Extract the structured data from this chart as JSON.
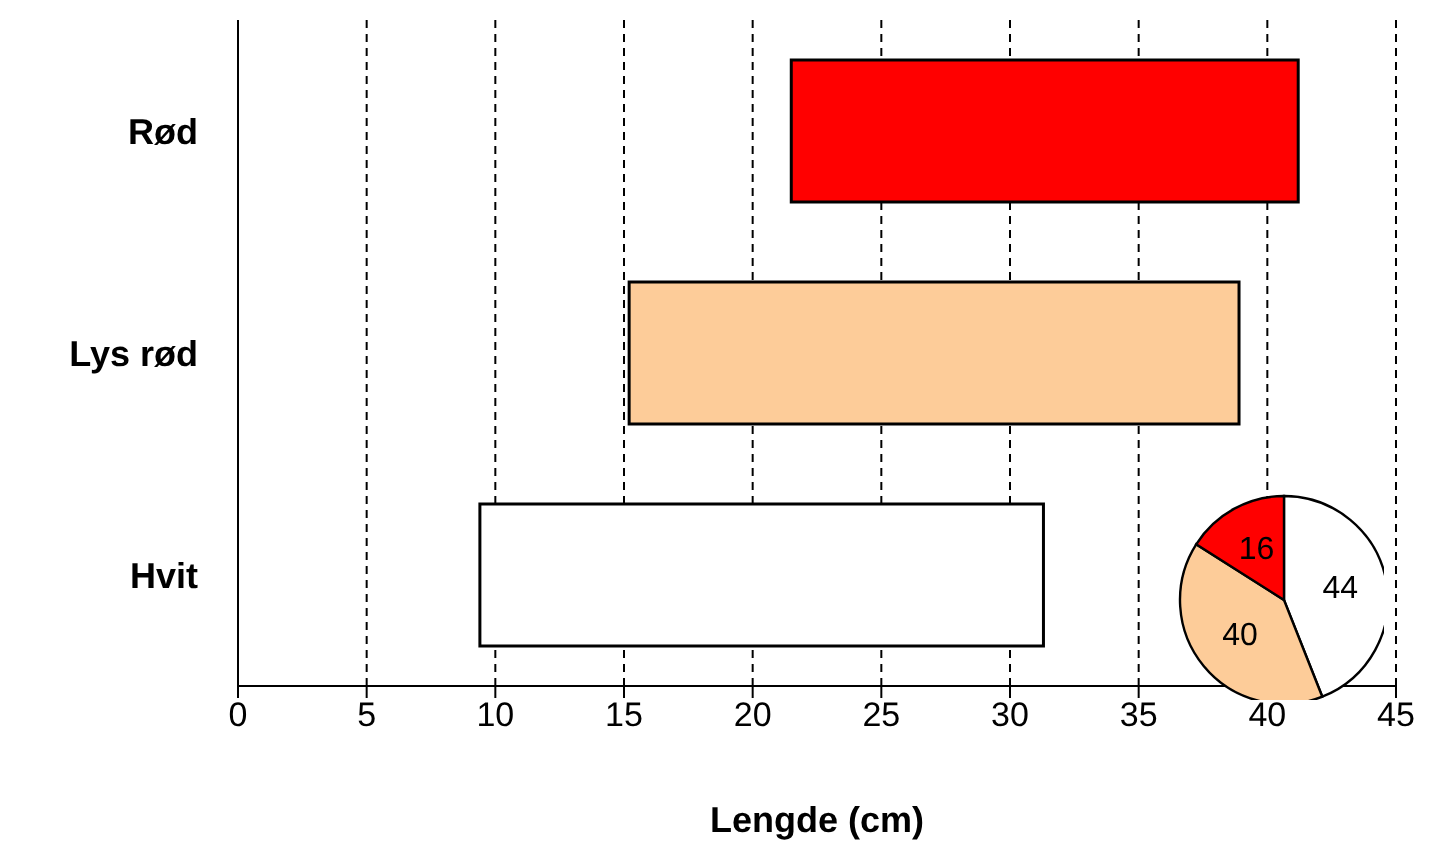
{
  "chart_data": [
    {
      "type": "bar",
      "orientation": "horizontal",
      "xlabel": "Lengde (cm)",
      "categories": [
        "Rød",
        "Lys rød",
        "Hvit"
      ],
      "base": [
        21.5,
        15.2,
        9.4
      ],
      "values": [
        19.7,
        23.7,
        21.9
      ],
      "colors": [
        "#ff0000",
        "#fdcc99",
        "#ffffff"
      ],
      "xlim": [
        0,
        45
      ],
      "xticks": [
        0,
        5,
        10,
        15,
        20,
        25,
        30,
        35,
        40,
        45
      ],
      "grid": "x",
      "legend": false
    },
    {
      "type": "pie",
      "categories": [
        null,
        null,
        null
      ],
      "values": [
        44,
        40,
        16
      ],
      "colors": [
        "#ffffff",
        "#fdcc99",
        "#ff0000"
      ],
      "data_labels": true,
      "legend": false
    }
  ]
}
